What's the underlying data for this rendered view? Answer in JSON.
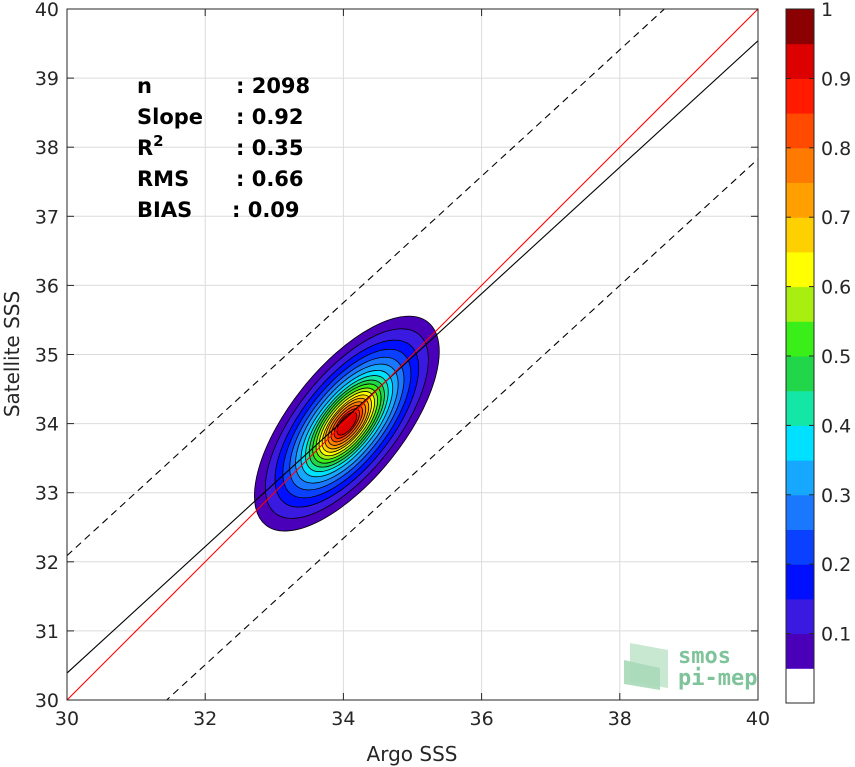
{
  "chart_data": {
    "type": "contour-density",
    "xlabel": "Argo SSS",
    "ylabel": "Satellite SSS",
    "xlim": [
      30,
      40
    ],
    "ylim": [
      30,
      40
    ],
    "xticks": [
      "30",
      "32",
      "34",
      "36",
      "38",
      "40"
    ],
    "yticks": [
      "30",
      "31",
      "32",
      "33",
      "34",
      "35",
      "36",
      "37",
      "38",
      "39",
      "40"
    ],
    "grid": true,
    "stats": [
      {
        "label": "n",
        "value": ": 2098"
      },
      {
        "label": "Slope",
        "value": ": 0.92"
      },
      {
        "label": "R",
        "sup": "2",
        "value": ": 0.35"
      },
      {
        "label": "RMS",
        "value": ": 0.66"
      },
      {
        "label": "BIAS",
        "value": ": 0.09"
      }
    ],
    "lines": {
      "identity": {
        "slope": 1.0,
        "intercept": 0.0,
        "color": "#ff0000"
      },
      "fit": {
        "slope": 0.915,
        "intercept": 2.94,
        "color": "#000000"
      },
      "upper_bound": {
        "slope": 0.915,
        "intercept": 4.64,
        "color": "#000000",
        "dashed": true
      },
      "lower_bound": {
        "slope": 0.915,
        "intercept": 1.23,
        "color": "#000000",
        "dashed": true
      }
    },
    "contour_center": [
      34.05,
      34.0
    ],
    "contour_levels": [
      {
        "level": 0.05,
        "semi_major": 1.88,
        "semi_minor": 0.82,
        "color": "#4a00b8"
      },
      {
        "level": 0.1,
        "semi_major": 1.66,
        "semi_minor": 0.72,
        "color": "#3a1ae0"
      },
      {
        "level": 0.15,
        "semi_major": 1.46,
        "semi_minor": 0.64,
        "color": "#0010ff"
      },
      {
        "level": 0.2,
        "semi_major": 1.3,
        "semi_minor": 0.57,
        "color": "#0a40ff"
      },
      {
        "level": 0.25,
        "semi_major": 1.16,
        "semi_minor": 0.51,
        "color": "#1a78ff"
      },
      {
        "level": 0.3,
        "semi_major": 1.04,
        "semi_minor": 0.46,
        "color": "#16a8ff"
      },
      {
        "level": 0.35,
        "semi_major": 0.93,
        "semi_minor": 0.41,
        "color": "#00e0ff"
      },
      {
        "level": 0.4,
        "semi_major": 0.84,
        "semi_minor": 0.37,
        "color": "#14e6a6"
      },
      {
        "level": 0.45,
        "semi_major": 0.76,
        "semi_minor": 0.34,
        "color": "#22d64a"
      },
      {
        "level": 0.5,
        "semi_major": 0.69,
        "semi_minor": 0.31,
        "color": "#3aee1a"
      },
      {
        "level": 0.55,
        "semi_major": 0.62,
        "semi_minor": 0.28,
        "color": "#a8ee10"
      },
      {
        "level": 0.6,
        "semi_major": 0.56,
        "semi_minor": 0.25,
        "color": "#ffff00"
      },
      {
        "level": 0.65,
        "semi_major": 0.5,
        "semi_minor": 0.22,
        "color": "#ffd000"
      },
      {
        "level": 0.7,
        "semi_major": 0.44,
        "semi_minor": 0.2,
        "color": "#ffa000"
      },
      {
        "level": 0.75,
        "semi_major": 0.38,
        "semi_minor": 0.17,
        "color": "#ff7a00"
      },
      {
        "level": 0.8,
        "semi_major": 0.32,
        "semi_minor": 0.14,
        "color": "#ff4a00"
      },
      {
        "level": 0.85,
        "semi_major": 0.26,
        "semi_minor": 0.11,
        "color": "#ff1a00"
      },
      {
        "level": 0.9,
        "semi_major": 0.2,
        "semi_minor": 0.09,
        "color": "#dd0000"
      }
    ],
    "colorbar": {
      "min": 0.0,
      "max": 1.0,
      "ticks": [
        "0.1",
        "0.2",
        "0.3",
        "0.4",
        "0.5",
        "0.6",
        "0.7",
        "0.8",
        "0.9",
        "1"
      ],
      "bands": [
        {
          "from": 0.0,
          "to": 0.05,
          "color": "#ffffff"
        },
        {
          "from": 0.05,
          "to": 0.1,
          "color": "#4a00b8"
        },
        {
          "from": 0.1,
          "to": 0.15,
          "color": "#3a1ae0"
        },
        {
          "from": 0.15,
          "to": 0.2,
          "color": "#0010ff"
        },
        {
          "from": 0.2,
          "to": 0.25,
          "color": "#0a40ff"
        },
        {
          "from": 0.25,
          "to": 0.3,
          "color": "#1a78ff"
        },
        {
          "from": 0.3,
          "to": 0.35,
          "color": "#16a8ff"
        },
        {
          "from": 0.35,
          "to": 0.4,
          "color": "#00e0ff"
        },
        {
          "from": 0.4,
          "to": 0.45,
          "color": "#14e6a6"
        },
        {
          "from": 0.45,
          "to": 0.5,
          "color": "#22d64a"
        },
        {
          "from": 0.5,
          "to": 0.55,
          "color": "#3aee1a"
        },
        {
          "from": 0.55,
          "to": 0.6,
          "color": "#a8ee10"
        },
        {
          "from": 0.6,
          "to": 0.65,
          "color": "#ffff00"
        },
        {
          "from": 0.65,
          "to": 0.7,
          "color": "#ffd000"
        },
        {
          "from": 0.7,
          "to": 0.75,
          "color": "#ffa000"
        },
        {
          "from": 0.75,
          "to": 0.8,
          "color": "#ff7a00"
        },
        {
          "from": 0.8,
          "to": 0.85,
          "color": "#ff4a00"
        },
        {
          "from": 0.85,
          "to": 0.9,
          "color": "#ff1a00"
        },
        {
          "from": 0.9,
          "to": 0.95,
          "color": "#dd0000"
        },
        {
          "from": 0.95,
          "to": 1.0,
          "color": "#8b0000"
        }
      ]
    }
  },
  "logo": {
    "line1": "smos",
    "line2": "pi-mep",
    "color": "#7fc39a"
  }
}
